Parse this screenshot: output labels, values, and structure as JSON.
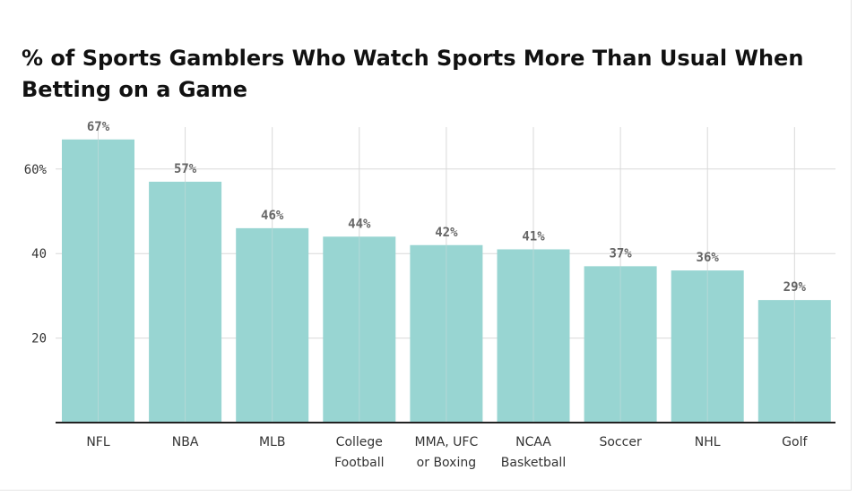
{
  "chart_data": {
    "type": "bar",
    "title": "% of Sports Gamblers Who Watch Sports More Than Usual When Betting on a Game",
    "categories": [
      [
        "NFL"
      ],
      [
        "NBA"
      ],
      [
        "MLB"
      ],
      [
        "College",
        "Football"
      ],
      [
        "MMA, UFC",
        "or Boxing"
      ],
      [
        "NCAA",
        "Basketball"
      ],
      [
        "Soccer"
      ],
      [
        "NHL"
      ],
      [
        "Golf"
      ]
    ],
    "values": [
      67,
      57,
      46,
      44,
      42,
      41,
      37,
      36,
      29
    ],
    "value_labels": [
      "67%",
      "57%",
      "46%",
      "44%",
      "42%",
      "41%",
      "37%",
      "36%",
      "29%"
    ],
    "yticks": [
      {
        "value": 20,
        "label": "20"
      },
      {
        "value": 40,
        "label": "40"
      },
      {
        "value": 60,
        "label": "60%"
      }
    ],
    "ylim": [
      0,
      70
    ],
    "grid": true,
    "bar_color": "#98d5d2",
    "grid_color": "#d9d9d9",
    "axis_color": "#222222"
  }
}
